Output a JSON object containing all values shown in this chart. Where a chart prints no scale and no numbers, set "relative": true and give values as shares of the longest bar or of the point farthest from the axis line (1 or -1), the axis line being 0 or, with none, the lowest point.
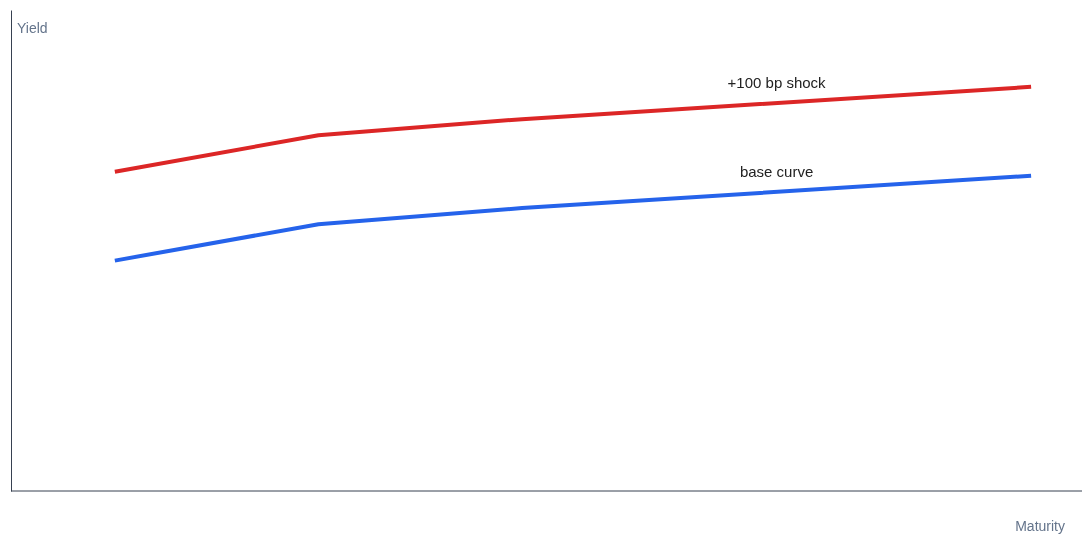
{
  "chart_data": {
    "type": "line",
    "relative": true,
    "xlabel": "Maturity",
    "ylabel": "Yield",
    "categories": [
      null,
      null,
      null,
      null,
      null,
      null,
      null,
      null,
      null,
      null
    ],
    "tick_labels": false,
    "grid": false,
    "legend": false,
    "marker": "none",
    "line_style": "solid",
    "series": [
      {
        "name": "+100 bp shock",
        "color": "#dc2626",
        "values": [
          0.79,
          null,
          0.88,
          null,
          0.92,
          null,
          null,
          null,
          null,
          1.0
        ]
      },
      {
        "name": "base curve",
        "color": "#2563eb",
        "values": [
          0.57,
          null,
          0.66,
          null,
          0.7,
          null,
          null,
          null,
          null,
          0.78
        ]
      }
    ]
  }
}
